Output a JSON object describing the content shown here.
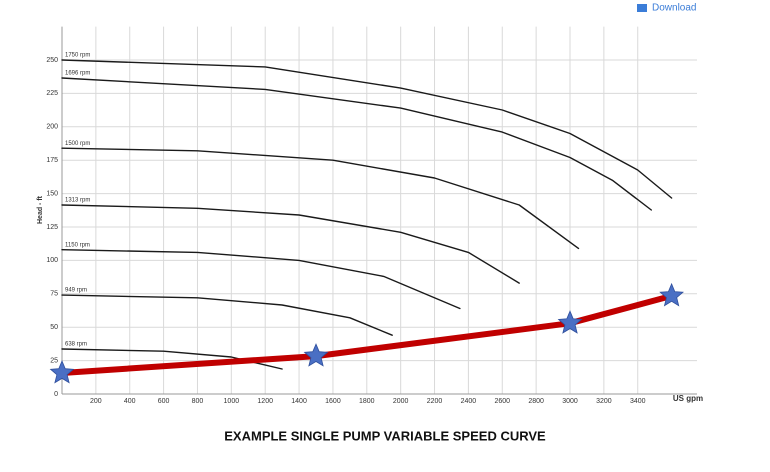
{
  "download_label": "Download",
  "chart_data": {
    "type": "line",
    "title": "EXAMPLE SINGLE PUMP VARIABLE SPEED CURVE",
    "x_label": "US gpm",
    "y_label": "Head - ft",
    "xlim": [
      0,
      3750
    ],
    "ylim": [
      0,
      275
    ],
    "xticks": [
      200,
      400,
      600,
      800,
      1000,
      1200,
      1400,
      1600,
      1800,
      2000,
      2200,
      2400,
      2600,
      2800,
      3000,
      3200,
      3400
    ],
    "yticks": [
      0,
      25,
      50,
      75,
      100,
      125,
      150,
      175,
      200,
      225,
      250
    ],
    "grid": true,
    "series": [
      {
        "name": "1750 rpm",
        "color": "#1a1a1a",
        "x": [
          0,
          1200,
          2000,
          2600,
          3000,
          3400,
          3600
        ],
        "values": [
          250,
          244.8,
          229,
          212.6,
          195,
          167.7,
          146.7
        ]
      },
      {
        "name": "1696 rpm",
        "color": "#1a1a1a",
        "x": [
          0,
          1200,
          2000,
          2600,
          3000,
          3250,
          3480
        ],
        "values": [
          236.5,
          228,
          214,
          196,
          177,
          160,
          137.7
        ]
      },
      {
        "name": "1500 rpm",
        "color": "#1a1a1a",
        "x": [
          0,
          800,
          1600,
          2200,
          2700,
          3050
        ],
        "values": [
          184,
          182,
          175,
          161.7,
          141.5,
          109
        ]
      },
      {
        "name": "1313 rpm",
        "color": "#1a1a1a",
        "x": [
          0,
          800,
          1400,
          2000,
          2400,
          2700
        ],
        "values": [
          141.5,
          139,
          134,
          121,
          106,
          83
        ]
      },
      {
        "name": "1150 rpm",
        "color": "#1a1a1a",
        "x": [
          0,
          800,
          1400,
          1900,
          2350
        ],
        "values": [
          108,
          106,
          100,
          88,
          64
        ]
      },
      {
        "name": "949 rpm",
        "color": "#1a1a1a",
        "x": [
          0,
          800,
          1300,
          1700,
          1950
        ],
        "values": [
          74,
          72,
          66.6,
          57,
          44
        ]
      },
      {
        "name": "638 rpm",
        "color": "#1a1a1a",
        "x": [
          0,
          600,
          1000,
          1300
        ],
        "values": [
          33.7,
          32,
          27.7,
          18.7
        ]
      },
      {
        "color": "#c00000",
        "marker": "star",
        "marker_color": "#4a6fc4",
        "x": [
          0,
          1500,
          3000,
          3600
        ],
        "values": [
          15.7,
          28.4,
          53,
          73.4
        ]
      }
    ]
  }
}
